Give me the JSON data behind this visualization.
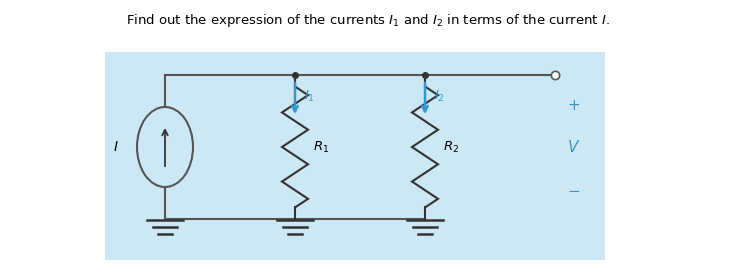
{
  "title": "Find out the expression of the currents $I_1$ and $I_2$ in terms of the current $I$.",
  "bg_color": "#cce8f4",
  "wire_color": "#555555",
  "resistor_color": "#333333",
  "current_color": "#3399cc",
  "ground_color": "#333333",
  "label_color": "#3399cc",
  "terminal_color": "#3399cc",
  "node_color": "#333333"
}
